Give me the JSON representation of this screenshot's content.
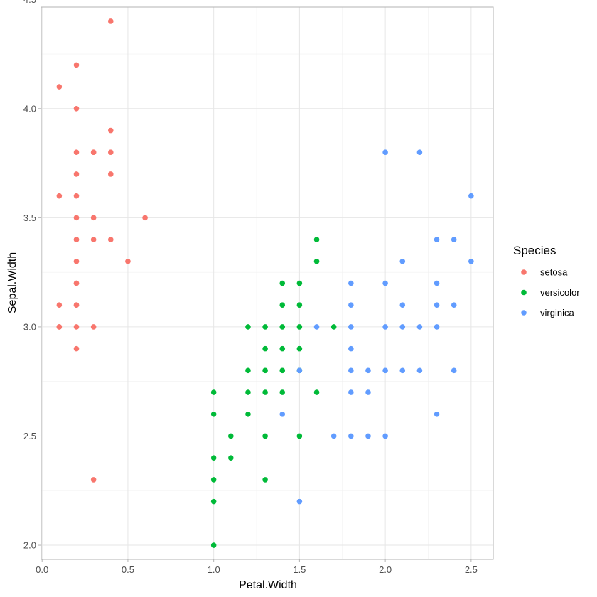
{
  "chart_data": {
    "type": "scatter",
    "title": "",
    "xlabel": "Petal.Width",
    "ylabel": "Sepal.Width",
    "xlim": [
      -0.005,
      2.629
    ],
    "ylim": [
      1.935,
      4.465
    ],
    "x_ticks": [
      0.0,
      0.5,
      1.0,
      1.5,
      2.0,
      2.5
    ],
    "x_tick_labels": [
      "0.0",
      "0.5",
      "1.0",
      "1.5",
      "2.0",
      "2.5"
    ],
    "y_ticks": [
      2.0,
      2.5,
      3.0,
      3.5,
      4.0,
      4.5
    ],
    "y_tick_labels": [
      "2.0",
      "2.5",
      "3.0",
      "3.5",
      "4.0",
      "4.5"
    ],
    "x_minor_ticks": [
      0.25,
      0.75,
      1.25,
      1.75,
      2.25
    ],
    "y_minor_ticks": [
      2.25,
      2.75,
      3.25,
      3.75,
      4.25
    ],
    "grid": true,
    "legend": {
      "title": "Species",
      "position": "right",
      "entries": [
        "setosa",
        "versicolor",
        "virginica"
      ]
    },
    "series": [
      {
        "name": "setosa",
        "color": "#F8766D",
        "x": [
          0.1,
          0.1,
          0.1,
          0.1,
          0.1,
          0.2,
          0.2,
          0.2,
          0.2,
          0.2,
          0.2,
          0.2,
          0.2,
          0.2,
          0.2,
          0.2,
          0.2,
          0.2,
          0.2,
          0.2,
          0.3,
          0.3,
          0.3,
          0.3,
          0.3,
          0.3,
          0.4,
          0.4,
          0.4,
          0.4,
          0.4,
          0.5,
          0.6
        ],
        "y": [
          4.1,
          3.6,
          3.1,
          3.0,
          3.0,
          4.2,
          4.0,
          3.8,
          3.7,
          3.6,
          3.5,
          3.4,
          3.4,
          3.3,
          3.2,
          3.2,
          3.1,
          3.1,
          3.0,
          2.9,
          3.8,
          3.8,
          3.5,
          3.4,
          3.0,
          2.3,
          4.4,
          3.9,
          3.8,
          3.7,
          3.4,
          3.3,
          3.5
        ]
      },
      {
        "name": "versicolor",
        "color": "#00BA38",
        "x": [
          1.0,
          1.0,
          1.0,
          1.0,
          1.0,
          1.0,
          1.1,
          1.1,
          1.2,
          1.2,
          1.2,
          1.2,
          1.3,
          1.3,
          1.3,
          1.3,
          1.3,
          1.3,
          1.4,
          1.4,
          1.4,
          1.4,
          1.4,
          1.4,
          1.5,
          1.5,
          1.5,
          1.5,
          1.5,
          1.5,
          1.6,
          1.6,
          1.6,
          1.7
        ],
        "y": [
          2.7,
          2.6,
          2.4,
          2.3,
          2.2,
          2.0,
          2.5,
          2.4,
          3.0,
          2.8,
          2.7,
          2.6,
          3.0,
          2.9,
          2.8,
          2.7,
          2.5,
          2.3,
          3.2,
          3.1,
          3.0,
          2.9,
          2.8,
          2.7,
          3.2,
          3.1,
          3.0,
          2.9,
          2.8,
          2.5,
          3.4,
          3.3,
          2.7,
          3.0
        ]
      },
      {
        "name": "virginica",
        "color": "#619CFF",
        "x": [
          1.4,
          1.5,
          1.5,
          1.6,
          1.7,
          1.8,
          1.8,
          1.8,
          1.8,
          1.8,
          1.8,
          1.8,
          1.9,
          1.9,
          1.9,
          2.0,
          2.0,
          2.0,
          2.0,
          2.0,
          2.1,
          2.1,
          2.1,
          2.1,
          2.2,
          2.2,
          2.2,
          2.3,
          2.3,
          2.3,
          2.3,
          2.3,
          2.4,
          2.4,
          2.4,
          2.5,
          2.5
        ],
        "y": [
          2.6,
          2.8,
          2.2,
          3.0,
          2.5,
          3.2,
          3.1,
          3.0,
          2.9,
          2.8,
          2.7,
          2.5,
          2.8,
          2.7,
          2.5,
          3.8,
          3.2,
          3.0,
          2.8,
          2.5,
          3.3,
          3.1,
          3.0,
          2.8,
          3.8,
          3.0,
          2.8,
          3.4,
          3.2,
          3.1,
          3.0,
          2.6,
          3.4,
          3.1,
          2.8,
          3.6,
          3.3
        ]
      }
    ]
  }
}
